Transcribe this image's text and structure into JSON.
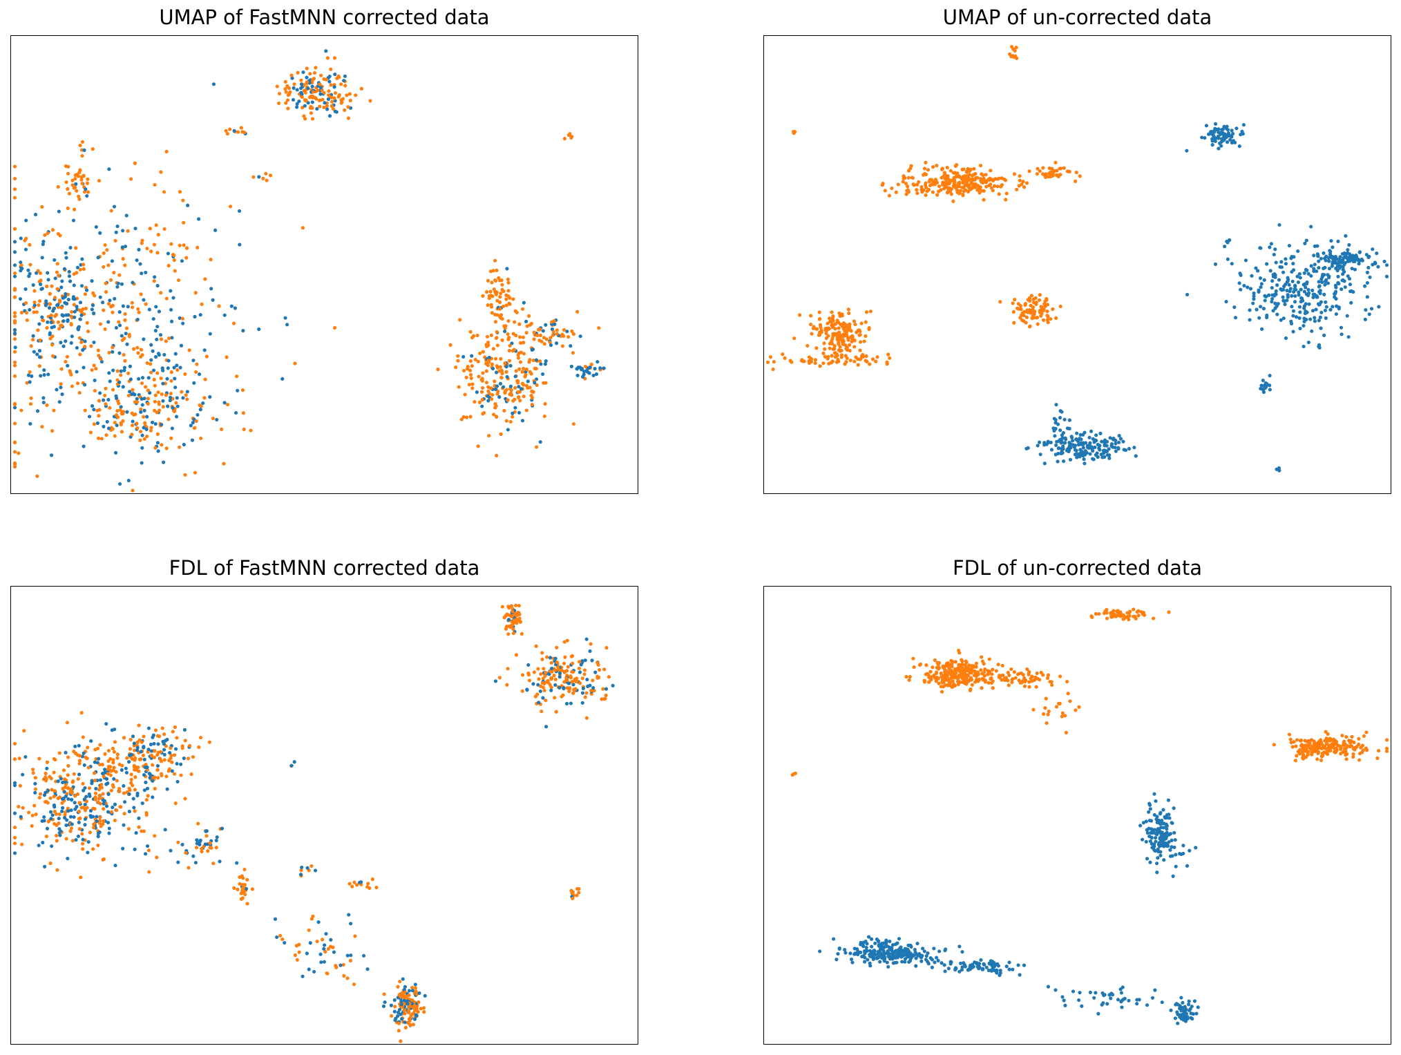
{
  "figure": {
    "colors": {
      "batch_1": "#1f77b4",
      "batch_2": "#ff7f0e"
    }
  },
  "chart_data": [
    {
      "type": "scatter",
      "title": "UMAP of FastMNN corrected data",
      "xlabel": "",
      "ylabel": "",
      "xlim": [
        0,
        100
      ],
      "ylim": [
        0,
        100
      ],
      "grid": false,
      "ticks": false,
      "clusters": [
        {
          "cx": 49,
          "cy": 88,
          "sx": 5,
          "sy": 5,
          "n": 160,
          "mix": 0.4,
          "shape": "ellipse"
        },
        {
          "cx": 11,
          "cy": 69,
          "sx": 2,
          "sy": 5,
          "n": 40,
          "mix": 0.05,
          "shape": "ellipse"
        },
        {
          "cx": 36,
          "cy": 79,
          "sx": 2,
          "sy": 1,
          "n": 10,
          "mix": 0.1,
          "shape": "ellipse"
        },
        {
          "cx": 40,
          "cy": 69,
          "sx": 1,
          "sy": 1,
          "n": 6,
          "mix": 0.3,
          "shape": "ellipse"
        },
        {
          "cx": 89,
          "cy": 78,
          "sx": 1,
          "sy": 1,
          "n": 5,
          "mix": 0.3,
          "shape": "ellipse"
        },
        {
          "cx": 15,
          "cy": 38,
          "sx": 14,
          "sy": 20,
          "n": 460,
          "mix": 0.42,
          "shape": "blob"
        },
        {
          "cx": 7,
          "cy": 42,
          "sx": 4,
          "sy": 7,
          "n": 120,
          "mix": 0.55,
          "shape": "blob"
        },
        {
          "cx": 22,
          "cy": 18,
          "sx": 7,
          "sy": 7,
          "n": 180,
          "mix": 0.45,
          "shape": "blob"
        },
        {
          "cx": 79,
          "cy": 26,
          "sx": 5,
          "sy": 8,
          "n": 260,
          "mix": 0.18,
          "shape": "blob"
        },
        {
          "cx": 78,
          "cy": 43,
          "sx": 2,
          "sy": 6,
          "n": 60,
          "mix": 0.05,
          "shape": "ellipse"
        },
        {
          "cx": 86,
          "cy": 35,
          "sx": 4,
          "sy": 3,
          "n": 50,
          "mix": 0.35,
          "shape": "ellipse"
        },
        {
          "cx": 92,
          "cy": 27,
          "sx": 2,
          "sy": 1,
          "n": 30,
          "mix": 0.6,
          "shape": "ellipse"
        }
      ]
    },
    {
      "type": "scatter",
      "title": "UMAP of un-corrected data",
      "xlabel": "",
      "ylabel": "",
      "xlim": [
        0,
        100
      ],
      "ylim": [
        0,
        100
      ],
      "grid": false,
      "ticks": false,
      "clusters": [
        {
          "cx": 31,
          "cy": 68,
          "sx": 8,
          "sy": 2.5,
          "n": 260,
          "mix": 0,
          "shape": "ellipse"
        },
        {
          "cx": 46,
          "cy": 70,
          "sx": 3,
          "sy": 1.5,
          "n": 40,
          "mix": 0,
          "shape": "ellipse"
        },
        {
          "cx": 40,
          "cy": 96,
          "sx": 0.6,
          "sy": 1.5,
          "n": 10,
          "mix": 0,
          "shape": "ellipse"
        },
        {
          "cx": 5,
          "cy": 79,
          "sx": 0.5,
          "sy": 0.4,
          "n": 3,
          "mix": 0,
          "shape": "ellipse"
        },
        {
          "cx": 12,
          "cy": 35,
          "sx": 3.5,
          "sy": 4,
          "n": 170,
          "mix": 0,
          "shape": "ellipse"
        },
        {
          "cx": 12,
          "cy": 29,
          "sx": 8,
          "sy": 1.5,
          "n": 60,
          "mix": 0,
          "shape": "ellipse"
        },
        {
          "cx": 43,
          "cy": 40,
          "sx": 3,
          "sy": 2.5,
          "n": 80,
          "mix": 0,
          "shape": "ellipse"
        },
        {
          "cx": 73,
          "cy": 78,
          "sx": 3,
          "sy": 2,
          "n": 70,
          "mix": 1,
          "shape": "ellipse"
        },
        {
          "cx": 86,
          "cy": 45,
          "sx": 7,
          "sy": 7,
          "n": 300,
          "mix": 1,
          "shape": "blob"
        },
        {
          "cx": 93,
          "cy": 51,
          "sx": 4,
          "sy": 1.5,
          "n": 90,
          "mix": 1,
          "shape": "ellipse"
        },
        {
          "cx": 80,
          "cy": 23,
          "sx": 0.8,
          "sy": 1.5,
          "n": 15,
          "mix": 1,
          "shape": "ellipse"
        },
        {
          "cx": 51,
          "cy": 10,
          "sx": 6,
          "sy": 2.5,
          "n": 170,
          "mix": 1,
          "shape": "ellipse"
        },
        {
          "cx": 47,
          "cy": 15,
          "sx": 1,
          "sy": 3,
          "n": 20,
          "mix": 1,
          "shape": "ellipse"
        },
        {
          "cx": 82,
          "cy": 5,
          "sx": 0.4,
          "sy": 0.4,
          "n": 3,
          "mix": 1,
          "shape": "ellipse"
        },
        {
          "cx": 74,
          "cy": 55,
          "sx": 0.3,
          "sy": 0.3,
          "n": 2,
          "mix": 1,
          "shape": "ellipse"
        }
      ]
    },
    {
      "type": "scatter",
      "title": "FDL of FastMNN corrected data",
      "xlabel": "",
      "ylabel": "",
      "xlim": [
        0,
        100
      ],
      "ylim": [
        0,
        100
      ],
      "grid": false,
      "ticks": false,
      "clusters": [
        {
          "cx": 12,
          "cy": 54,
          "sx": 7,
          "sy": 8,
          "n": 400,
          "mix": 0.45,
          "shape": "blob"
        },
        {
          "cx": 22,
          "cy": 63,
          "sx": 5,
          "sy": 4,
          "n": 160,
          "mix": 0.35,
          "shape": "blob"
        },
        {
          "cx": 88,
          "cy": 80,
          "sx": 5,
          "sy": 4,
          "n": 200,
          "mix": 0.25,
          "shape": "blob"
        },
        {
          "cx": 80,
          "cy": 93,
          "sx": 1.3,
          "sy": 3,
          "n": 60,
          "mix": 0.1,
          "shape": "ellipse"
        },
        {
          "cx": 63,
          "cy": 8,
          "sx": 2,
          "sy": 4,
          "n": 140,
          "mix": 0.35,
          "shape": "ellipse"
        },
        {
          "cx": 37,
          "cy": 34,
          "sx": 1,
          "sy": 2.5,
          "n": 25,
          "mix": 0.1,
          "shape": "ellipse"
        },
        {
          "cx": 90,
          "cy": 33,
          "sx": 0.6,
          "sy": 1.5,
          "n": 10,
          "mix": 0.2,
          "shape": "ellipse"
        },
        {
          "cx": 31,
          "cy": 44,
          "sx": 4,
          "sy": 4,
          "n": 40,
          "mix": 0.6,
          "shape": "ellipse"
        },
        {
          "cx": 50,
          "cy": 20,
          "sx": 6,
          "sy": 6,
          "n": 50,
          "mix": 0.5,
          "shape": "ellipse"
        },
        {
          "cx": 56,
          "cy": 35,
          "sx": 2,
          "sy": 0.7,
          "n": 12,
          "mix": 0.1,
          "shape": "ellipse"
        },
        {
          "cx": 47,
          "cy": 38,
          "sx": 1.5,
          "sy": 1,
          "n": 8,
          "mix": 0.6,
          "shape": "ellipse"
        },
        {
          "cx": 45,
          "cy": 61,
          "sx": 0.6,
          "sy": 0.4,
          "n": 4,
          "mix": 0.7,
          "shape": "ellipse"
        }
      ]
    },
    {
      "type": "scatter",
      "title": "FDL of un-corrected data",
      "xlabel": "",
      "ylabel": "",
      "xlim": [
        0,
        100
      ],
      "ylim": [
        0,
        100
      ],
      "grid": false,
      "ticks": false,
      "clusters": [
        {
          "cx": 31,
          "cy": 81,
          "sx": 5,
          "sy": 3,
          "n": 240,
          "mix": 0,
          "shape": "ellipse"
        },
        {
          "cx": 41,
          "cy": 80,
          "sx": 5,
          "sy": 1.5,
          "n": 60,
          "mix": 0,
          "shape": "ellipse"
        },
        {
          "cx": 57,
          "cy": 94,
          "sx": 4,
          "sy": 1,
          "n": 60,
          "mix": 0,
          "shape": "ellipse"
        },
        {
          "cx": 90,
          "cy": 65,
          "sx": 5,
          "sy": 2,
          "n": 200,
          "mix": 0,
          "shape": "ellipse"
        },
        {
          "cx": 46,
          "cy": 73,
          "sx": 3,
          "sy": 4,
          "n": 18,
          "mix": 0,
          "shape": "ellipse"
        },
        {
          "cx": 5,
          "cy": 59,
          "sx": 0.4,
          "sy": 0.3,
          "n": 3,
          "mix": 0,
          "shape": "ellipse"
        },
        {
          "cx": 20,
          "cy": 20,
          "sx": 6,
          "sy": 2,
          "n": 230,
          "mix": 1,
          "shape": "ellipse"
        },
        {
          "cx": 34,
          "cy": 17,
          "sx": 5,
          "sy": 1.2,
          "n": 80,
          "mix": 1,
          "shape": "ellipse"
        },
        {
          "cx": 55,
          "cy": 10,
          "sx": 7,
          "sy": 2,
          "n": 40,
          "mix": 1,
          "shape": "ellipse"
        },
        {
          "cx": 67,
          "cy": 7,
          "sx": 1.5,
          "sy": 2,
          "n": 60,
          "mix": 1,
          "shape": "ellipse"
        },
        {
          "cx": 63,
          "cy": 46,
          "sx": 2,
          "sy": 5,
          "n": 130,
          "mix": 1,
          "shape": "ellipse"
        },
        {
          "cx": 67,
          "cy": 42,
          "sx": 1.5,
          "sy": 2,
          "n": 10,
          "mix": 1,
          "shape": "ellipse"
        }
      ]
    }
  ]
}
